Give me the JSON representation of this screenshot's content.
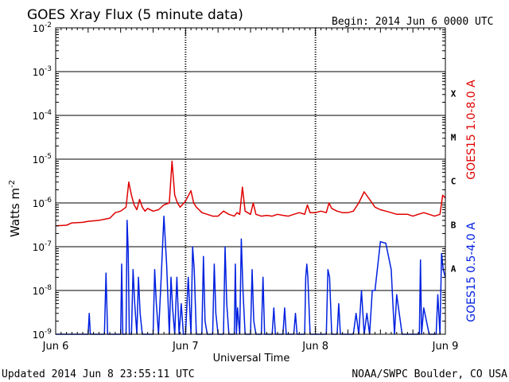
{
  "chart_data": {
    "type": "line",
    "title": "GOES Xray Flux (5 minute data)",
    "begin_label": "Begin:  2014 Jun 6 0000 UTC",
    "xlabel": "Universal Time",
    "ylabel": "Watts m",
    "ylabel_sup": "-2",
    "yscale": "log",
    "ylim": [
      1e-09,
      0.01
    ],
    "xlim": [
      0,
      72
    ],
    "x_units": "hours since 2014 Jun 6 0000 UTC",
    "x_ticks": [
      {
        "x": 0,
        "label": "Jun 6"
      },
      {
        "x": 24,
        "label": "Jun 7"
      },
      {
        "x": 48,
        "label": "Jun 8"
      },
      {
        "x": 72,
        "label": "Jun 9"
      }
    ],
    "y_ticks": [
      {
        "exp": -9,
        "label": "10",
        "sup": "-9"
      },
      {
        "exp": -8,
        "label": "10",
        "sup": "-8"
      },
      {
        "exp": -7,
        "label": "10",
        "sup": "-7"
      },
      {
        "exp": -6,
        "label": "10",
        "sup": "-6"
      },
      {
        "exp": -5,
        "label": "10",
        "sup": "-5"
      },
      {
        "exp": -4,
        "label": "10",
        "sup": "-4"
      },
      {
        "exp": -3,
        "label": "10",
        "sup": "-3"
      },
      {
        "exp": -2,
        "label": "10",
        "sup": "-2"
      }
    ],
    "flare_classes": [
      {
        "label": "A",
        "exp": -7.5
      },
      {
        "label": "B",
        "exp": -6.5
      },
      {
        "label": "C",
        "exp": -5.5
      },
      {
        "label": "M",
        "exp": -4.5
      },
      {
        "label": "X",
        "exp": -3.5
      }
    ],
    "grid": true,
    "series": [
      {
        "name": "GOES15 1.0-8.0 A",
        "color": "#e00000",
        "x": [
          0,
          2,
          3,
          5,
          6,
          8,
          10,
          11,
          12,
          13,
          13.5,
          14,
          14.5,
          15,
          15.5,
          16,
          16.5,
          17,
          18,
          19,
          20,
          21,
          21.5,
          22,
          22.5,
          23,
          24,
          25,
          25.5,
          26,
          26.5,
          27,
          28,
          29,
          30,
          31,
          32,
          33,
          33.5,
          34,
          34.5,
          35,
          36,
          36.5,
          37,
          38,
          39,
          40,
          41,
          42,
          43,
          44,
          45,
          46,
          46.5,
          47,
          48,
          49,
          50,
          50.5,
          51,
          52,
          53,
          54,
          55,
          56,
          57,
          58,
          59,
          60,
          61,
          62,
          63,
          64,
          65,
          66,
          67,
          68,
          69,
          70,
          71,
          71.5,
          72
        ],
        "y": [
          3e-07,
          3.1e-07,
          3.5e-07,
          3.6e-07,
          3.8e-07,
          4e-07,
          4.5e-07,
          6e-07,
          6.5e-07,
          8e-07,
          3e-06,
          1.5e-06,
          9e-07,
          7e-07,
          1.2e-06,
          8e-07,
          6.5e-07,
          7.5e-07,
          6.5e-07,
          7e-07,
          9e-07,
          1e-06,
          9e-06,
          1.5e-06,
          1e-06,
          8e-07,
          1.1e-06,
          1.9e-06,
          1e-06,
          8e-07,
          7e-07,
          6e-07,
          5.5e-07,
          5e-07,
          5e-07,
          6.5e-07,
          5.5e-07,
          5e-07,
          6e-07,
          5.5e-07,
          2.3e-06,
          6.5e-07,
          5.5e-07,
          1e-06,
          5.5e-07,
          5e-07,
          5.2e-07,
          5e-07,
          5.5e-07,
          5.2e-07,
          5e-07,
          5.5e-07,
          6e-07,
          5.5e-07,
          9e-07,
          6e-07,
          6e-07,
          6.5e-07,
          6e-07,
          1e-06,
          7.5e-07,
          6.5e-07,
          6e-07,
          6e-07,
          6.5e-07,
          1e-06,
          1.8e-06,
          1.2e-06,
          8e-07,
          7e-07,
          6.5e-07,
          6e-07,
          5.5e-07,
          5.5e-07,
          5.5e-07,
          5e-07,
          5.5e-07,
          6e-07,
          5.5e-07,
          5e-07,
          5.5e-07,
          1.5e-06,
          1.3e-06
        ]
      },
      {
        "name": "GOES15 0.5-4.0 A",
        "color": "#0020e0",
        "x": [
          0,
          5,
          6,
          6.2,
          6.4,
          7,
          9,
          9.3,
          9.6,
          10,
          12,
          12.2,
          12.4,
          13,
          13.2,
          13.4,
          13.6,
          14,
          14.3,
          14.6,
          15,
          15.3,
          15.6,
          16,
          18,
          18.3,
          18.6,
          19,
          19.5,
          20,
          20.5,
          21,
          21.3,
          21.6,
          22,
          22.4,
          22.8,
          23.2,
          23.6,
          24,
          24.5,
          25,
          25.3,
          25.6,
          26,
          27,
          27.3,
          27.6,
          28,
          29,
          29.3,
          29.6,
          30,
          31,
          31.3,
          31.6,
          32,
          33,
          33.2,
          33.4,
          33.6,
          34,
          34.3,
          34.6,
          35,
          36,
          36.3,
          36.6,
          37,
          38,
          38.3,
          38.6,
          39,
          40,
          40.3,
          40.6,
          41,
          42,
          42.3,
          42.6,
          43,
          44,
          44.3,
          44.6,
          45,
          46,
          46.2,
          46.4,
          46.6,
          47,
          48,
          48.5,
          49,
          50,
          50.3,
          50.6,
          51,
          52,
          52.3,
          52.6,
          53,
          54,
          55,
          55.5,
          56,
          56.5,
          57,
          57.5,
          58,
          58.5,
          59,
          60,
          61,
          62,
          62.3,
          62.6,
          63,
          64,
          65,
          66,
          67,
          67.2,
          67.4,
          67.6,
          68,
          69,
          70,
          70.3,
          70.6,
          71,
          71.3,
          71.6,
          72
        ],
        "y": [
          1e-09,
          1e-09,
          1e-09,
          3e-09,
          1e-09,
          1e-09,
          1e-09,
          2.5e-08,
          1e-09,
          1e-09,
          1e-09,
          4e-08,
          1e-09,
          1e-09,
          4e-07,
          8e-08,
          1e-09,
          1e-09,
          3e-08,
          5e-09,
          1e-09,
          2e-08,
          3e-09,
          1e-09,
          1e-09,
          3e-08,
          5e-09,
          1e-09,
          2e-08,
          5e-07,
          4e-08,
          1e-09,
          2e-08,
          4e-09,
          1e-09,
          2e-08,
          1e-09,
          5e-09,
          1e-09,
          1e-09,
          2e-08,
          1e-09,
          1e-07,
          3e-08,
          1e-09,
          1e-09,
          6e-08,
          2e-09,
          1e-09,
          1e-09,
          4e-08,
          3e-09,
          1e-09,
          1e-09,
          1e-07,
          5e-09,
          1e-09,
          1e-09,
          4e-08,
          1e-09,
          4e-09,
          1e-09,
          1.5e-07,
          1e-08,
          1e-09,
          1e-09,
          3e-08,
          2e-09,
          1e-09,
          1e-09,
          2e-08,
          1e-09,
          1e-09,
          1e-09,
          4e-09,
          1e-09,
          1e-09,
          1e-09,
          4e-09,
          1e-09,
          1e-09,
          1e-09,
          3e-09,
          1e-09,
          1e-09,
          1e-09,
          2e-08,
          4e-08,
          2e-08,
          1e-09,
          1e-09,
          1e-09,
          1e-09,
          1e-09,
          3e-08,
          2e-08,
          1e-09,
          1e-09,
          5e-09,
          1e-09,
          1e-09,
          1e-09,
          1e-09,
          3e-09,
          1e-09,
          1e-08,
          1e-09,
          3e-09,
          1e-09,
          1e-08,
          1e-08,
          1.3e-07,
          1.2e-07,
          3e-08,
          5e-09,
          1e-09,
          8e-09,
          1e-09,
          1e-09,
          1e-09,
          1e-09,
          1e-09,
          5e-08,
          1e-09,
          4e-09,
          1e-09,
          1e-09,
          1e-09,
          8e-09,
          1e-09,
          7e-08,
          3e-08,
          2e-08
        ]
      }
    ]
  },
  "footer": {
    "updated": "Updated 2014 Jun  8 23:55:11 UTC",
    "credit": "NOAA/SWPC Boulder, CO USA"
  }
}
